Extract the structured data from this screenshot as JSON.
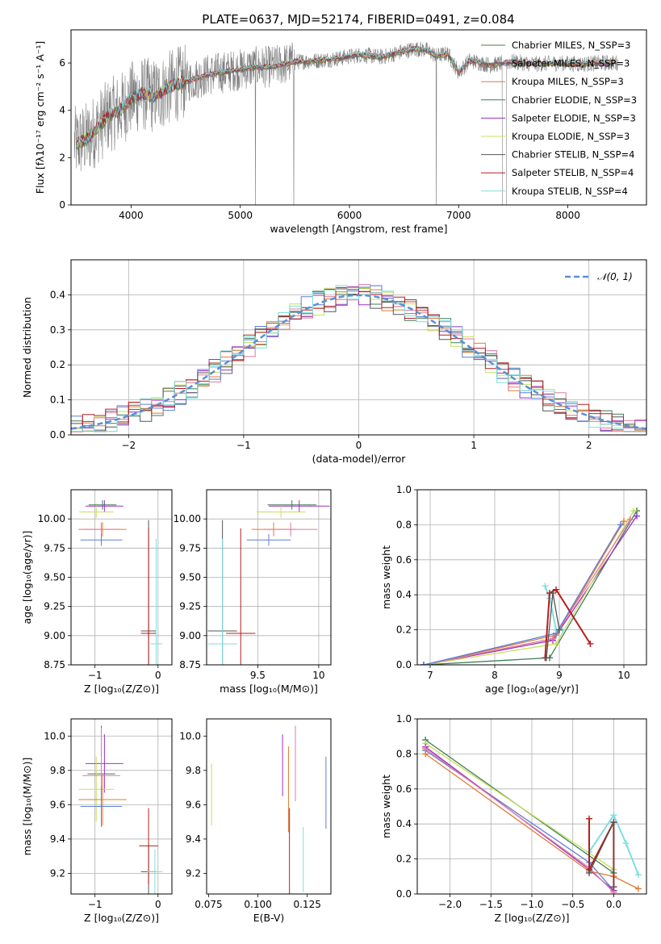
{
  "figure_title": "PLATE=0637, MJD=52174, FIBERID=0491, z=0.084",
  "chart_data": [
    {
      "id": "spectrum",
      "type": "line",
      "xlabel": "wavelength [Angstrom, rest frame]",
      "ylabel": "Flux [fλ10⁻¹⁷ erg cm⁻² s⁻¹ A⁻¹]",
      "xlim": [
        3450,
        8720
      ],
      "ylim": [
        0,
        7.4
      ],
      "xticks": [
        4000,
        5000,
        6000,
        7000,
        8000
      ],
      "yticks": [
        0,
        2,
        4,
        6
      ],
      "grid": false,
      "legend_position": "upper-right",
      "series": [
        {
          "name": "Chabrier MILES, N_SSP=3",
          "color": "#4c7a4c"
        },
        {
          "name": "Salpeter MILES, N_SSP=3",
          "color": "#7a5c8a"
        },
        {
          "name": "Kroupa MILES, N_SSP=3",
          "color": "#e07b39"
        },
        {
          "name": "Chabrier ELODIE, N_SSP=3",
          "color": "#3e7d58"
        },
        {
          "name": "Salpeter ELODIE, N_SSP=3",
          "color": "#9b30c4"
        },
        {
          "name": "Kroupa ELODIE, N_SSP=3",
          "color": "#c8e05a"
        },
        {
          "name": "Chabrier STELIB, N_SSP=4",
          "color": "#555555"
        },
        {
          "name": "Salpeter STELIB, N_SSP=4",
          "color": "#b51e1e"
        },
        {
          "name": "Kroupa STELIB, N_SSP=4",
          "color": "#7fdede"
        }
      ],
      "data_series": {
        "name": "data",
        "color": "#7f7f7f"
      },
      "model_continuum": {
        "x": [
          3500,
          3600,
          3700,
          3800,
          3900,
          4000,
          4100,
          4200,
          4300,
          4400,
          4500,
          4700,
          4900,
          5100,
          5300,
          5500,
          5700,
          5900,
          6100,
          6300,
          6500,
          6600,
          6700,
          6800,
          6900,
          7000,
          7100,
          7200,
          7300,
          7400,
          7500,
          7700,
          7900,
          8100,
          8300,
          8450
        ],
        "y": [
          2.6,
          2.8,
          3.3,
          3.8,
          4.0,
          4.5,
          4.7,
          4.6,
          4.8,
          5.1,
          5.2,
          5.5,
          5.65,
          5.8,
          5.85,
          6.05,
          6.1,
          6.2,
          6.35,
          6.25,
          6.5,
          6.6,
          6.55,
          6.3,
          6.4,
          5.6,
          6.1,
          6.0,
          5.9,
          6.0,
          6.05,
          5.95,
          6.0,
          5.95,
          6.0,
          6.0
        ]
      }
    },
    {
      "id": "residuals",
      "type": "line",
      "xlabel": "(data-model)/error",
      "ylabel": "Normed distribution",
      "xlim": [
        -2.5,
        2.5
      ],
      "ylim": [
        0,
        0.5
      ],
      "xticks": [
        -2,
        -1,
        0,
        1,
        2
      ],
      "yticks": [
        0.0,
        0.1,
        0.2,
        0.3,
        0.4
      ],
      "grid": true,
      "legend_position": "upper-right",
      "legend_label": "𝒩(0, 1)",
      "reference_curve": {
        "name": "N(0,1)",
        "mean": 0,
        "sigma": 1,
        "color": "#5b8fd6"
      },
      "bin_width": 0.1
    },
    {
      "id": "age_vs_Z",
      "type": "scatter",
      "xlabel": "Z [log₁₀(Z/Z⊙)]",
      "ylabel": "age  [log₁₀(age/yr)]",
      "xlim": [
        -1.38,
        0.22
      ],
      "ylim": [
        8.75,
        10.25
      ],
      "xticks": [
        -1,
        0
      ],
      "yticks": [
        8.75,
        9.0,
        9.25,
        9.5,
        9.75,
        10.0
      ],
      "grid": true,
      "points": [
        {
          "x": -0.88,
          "y": 10.12,
          "xerr": 0.22,
          "yerr": 0.04,
          "color": "#3e7d58"
        },
        {
          "x": -0.85,
          "y": 10.11,
          "xerr": 0.3,
          "yerr": 0.05,
          "color": "#9b30c4"
        },
        {
          "x": -0.98,
          "y": 10.06,
          "xerr": 0.27,
          "yerr": 0.05,
          "color": "#c8e05a"
        },
        {
          "x": -0.88,
          "y": 9.91,
          "xerr": 0.38,
          "yerr": 0.06,
          "color": "#e07b39"
        },
        {
          "x": -0.9,
          "y": 9.91,
          "xerr": 0.3,
          "yerr": 0.06,
          "color": "#e07b9b"
        },
        {
          "x": -0.9,
          "y": 9.82,
          "xerr": 0.33,
          "yerr": 0.05,
          "color": "#5b7fd6"
        },
        {
          "x": -0.15,
          "y": 9.04,
          "xerr": 0.12,
          "yerr": 0.95,
          "color": "#555555"
        },
        {
          "x": -0.15,
          "y": 9.02,
          "xerr": 0.12,
          "yerr": 0.9,
          "color": "#b51e1e"
        },
        {
          "x": -0.03,
          "y": 8.93,
          "xerr": 0.1,
          "yerr": 0.9,
          "color": "#7fdede"
        }
      ]
    },
    {
      "id": "age_vs_mass",
      "type": "scatter",
      "xlabel": "mass [log₁₀(M/M⊙)]",
      "ylabel": "",
      "xlim": [
        9.08,
        10.1
      ],
      "ylim": [
        8.75,
        10.25
      ],
      "xticks": [
        9.5,
        10.0
      ],
      "yticks": [
        8.75,
        9.0,
        9.25,
        9.5,
        9.75,
        10.0
      ],
      "grid": true,
      "points": [
        {
          "x": 9.78,
          "y": 10.12,
          "xerr": 0.2,
          "yerr": 0.04,
          "color": "#3e7d58"
        },
        {
          "x": 9.84,
          "y": 10.11,
          "xerr": 0.25,
          "yerr": 0.05,
          "color": "#9b30c4"
        },
        {
          "x": 9.69,
          "y": 10.06,
          "xerr": 0.2,
          "yerr": 0.05,
          "color": "#c8e05a"
        },
        {
          "x": 9.63,
          "y": 9.91,
          "xerr": 0.18,
          "yerr": 0.06,
          "color": "#e07b39"
        },
        {
          "x": 9.77,
          "y": 9.91,
          "xerr": 0.22,
          "yerr": 0.06,
          "color": "#e07b9b"
        },
        {
          "x": 9.59,
          "y": 9.82,
          "xerr": 0.18,
          "yerr": 0.05,
          "color": "#5b7fd6"
        },
        {
          "x": 9.21,
          "y": 9.04,
          "xerr": 0.12,
          "yerr": 0.95,
          "color": "#555555"
        },
        {
          "x": 9.36,
          "y": 9.02,
          "xerr": 0.12,
          "yerr": 0.9,
          "color": "#b51e1e"
        },
        {
          "x": 9.21,
          "y": 8.93,
          "xerr": 0.12,
          "yerr": 0.9,
          "color": "#7fdede"
        }
      ]
    },
    {
      "id": "weight_vs_age",
      "type": "line",
      "xlabel": "age  [log₁₀(age/yr)]",
      "ylabel": "mass weight",
      "xlim": [
        6.8,
        10.35
      ],
      "ylim": [
        0,
        1
      ],
      "xticks": [
        7,
        8,
        9,
        10
      ],
      "yticks": [
        0.0,
        0.2,
        0.4,
        0.6,
        0.8,
        1.0
      ],
      "grid": true,
      "series": [
        {
          "color": "#3e7d58",
          "x": [
            6.9,
            8.85,
            10.2
          ],
          "y": [
            0.0,
            0.04,
            0.88
          ]
        },
        {
          "color": "#9b30c4",
          "x": [
            6.9,
            8.9,
            10.2
          ],
          "y": [
            0.0,
            0.14,
            0.85
          ]
        },
        {
          "color": "#c8e05a",
          "x": [
            6.9,
            8.95,
            10.15
          ],
          "y": [
            0.0,
            0.12,
            0.88
          ]
        },
        {
          "color": "#e07b39",
          "x": [
            6.9,
            8.95,
            10.0
          ],
          "y": [
            0.0,
            0.17,
            0.82
          ]
        },
        {
          "color": "#e07b9b",
          "x": [
            6.9,
            8.9,
            10.1
          ],
          "y": [
            0.0,
            0.15,
            0.83
          ]
        },
        {
          "color": "#5b7fd6",
          "x": [
            6.9,
            8.95,
            9.95
          ],
          "y": [
            0.0,
            0.18,
            0.8
          ]
        },
        {
          "color": "#7fdede",
          "x": [
            8.78,
            8.85,
            8.95,
            9.05
          ],
          "y": [
            0.45,
            0.38,
            0.2,
            0.2
          ]
        },
        {
          "color": "#b51e1e",
          "x": [
            8.78,
            8.85,
            8.95,
            9.48
          ],
          "y": [
            0.04,
            0.41,
            0.43,
            0.12
          ]
        },
        {
          "color": "#555555",
          "x": [
            8.8,
            8.9,
            9.0
          ],
          "y": [
            0.04,
            0.41,
            0.2
          ]
        }
      ]
    },
    {
      "id": "mass_vs_Z",
      "type": "scatter",
      "xlabel": "Z [log₁₀(Z/Z⊙)]",
      "ylabel": "mass [log₁₀(M/M⊙)]",
      "xlim": [
        -1.38,
        0.22
      ],
      "ylim": [
        9.08,
        10.1
      ],
      "xticks": [
        -1,
        0
      ],
      "yticks": [
        9.2,
        9.4,
        9.6,
        9.8,
        10.0
      ],
      "grid": true,
      "points": [
        {
          "x": -0.9,
          "y": 9.78,
          "xerr": 0.22,
          "yerr": 0.28,
          "color": "#3e7d58"
        },
        {
          "x": -0.85,
          "y": 9.84,
          "xerr": 0.3,
          "yerr": 0.17,
          "color": "#9b30c4"
        },
        {
          "x": -0.98,
          "y": 9.69,
          "xerr": 0.28,
          "yerr": 0.19,
          "color": "#c8e05a"
        },
        {
          "x": -0.88,
          "y": 9.63,
          "xerr": 0.38,
          "yerr": 0.15,
          "color": "#e07b39"
        },
        {
          "x": -0.9,
          "y": 9.77,
          "xerr": 0.3,
          "yerr": 0.28,
          "color": "#e07b9b"
        },
        {
          "x": -0.9,
          "y": 9.59,
          "xerr": 0.33,
          "yerr": 0.12,
          "color": "#5b7fd6"
        },
        {
          "x": -0.15,
          "y": 9.21,
          "xerr": 0.12,
          "yerr": 0.15,
          "color": "#555555"
        },
        {
          "x": -0.15,
          "y": 9.36,
          "xerr": 0.15,
          "yerr": 0.22,
          "color": "#b51e1e"
        },
        {
          "x": -0.05,
          "y": 9.21,
          "xerr": 0.12,
          "yerr": 0.13,
          "color": "#7fdede"
        }
      ]
    },
    {
      "id": "mass_vs_ebv",
      "type": "scatter",
      "xlabel": "E(B-V)",
      "ylabel": "",
      "xlim": [
        0.074,
        0.137
      ],
      "ylim": [
        9.08,
        10.1
      ],
      "xticks": [
        0.075,
        0.1,
        0.125
      ],
      "xtick_labels": [
        "0.075",
        "0.100",
        "0.125"
      ],
      "yticks": [
        9.2,
        9.4,
        9.6,
        9.8,
        10.0
      ],
      "grid": false,
      "points": [
        {
          "x": 0.0765,
          "y": 9.66,
          "yerr": 0.18,
          "color": "#c8e05a"
        },
        {
          "x": 0.1125,
          "y": 9.83,
          "yerr": 0.18,
          "color": "#9b30c4"
        },
        {
          "x": 0.1155,
          "y": 9.69,
          "yerr": 0.25,
          "color": "#e07b39"
        },
        {
          "x": 0.116,
          "y": 9.33,
          "yerr": 0.25,
          "color": "#b51e1e"
        },
        {
          "x": 0.119,
          "y": 9.84,
          "yerr": 0.22,
          "color": "#e07b9b"
        },
        {
          "x": 0.123,
          "y": 9.28,
          "yerr": 0.19,
          "color": "#7fdede"
        },
        {
          "x": 0.1345,
          "y": 9.67,
          "yerr": 0.21,
          "color": "#5b7fd6"
        }
      ]
    },
    {
      "id": "weight_vs_Z",
      "type": "line",
      "xlabel": "Z [log₁₀(Z/Z⊙)]",
      "ylabel": "mass weight",
      "xlim": [
        -2.4,
        0.4
      ],
      "ylim": [
        0,
        1
      ],
      "xticks": [
        -2.0,
        -1.5,
        -1.0,
        -0.5,
        0.0
      ],
      "xtick_labels": [
        "−2.0",
        "−1.5",
        "−1.0",
        "−0.5",
        "0.0"
      ],
      "yticks": [
        0.0,
        0.2,
        0.4,
        0.6,
        0.8,
        1.0
      ],
      "grid": true,
      "series": [
        {
          "color": "#3e7d58",
          "x": [
            -2.3,
            0.0
          ],
          "y": [
            0.88,
            0.12
          ]
        },
        {
          "color": "#c8e05a",
          "x": [
            -2.3,
            0.0
          ],
          "y": [
            0.86,
            0.14
          ]
        },
        {
          "color": "#5b7fd6",
          "x": [
            -2.3,
            -0.3,
            0.0
          ],
          "y": [
            0.82,
            0.18,
            0.02
          ]
        },
        {
          "color": "#9b30c4",
          "x": [
            -2.3,
            -0.3,
            0.0
          ],
          "y": [
            0.84,
            0.14,
            0.02
          ]
        },
        {
          "color": "#e07b9b",
          "x": [
            -2.3,
            -0.3,
            0.0
          ],
          "y": [
            0.83,
            0.15,
            0.01
          ]
        },
        {
          "color": "#e07b39",
          "x": [
            -2.3,
            -0.3,
            0.0,
            0.3
          ],
          "y": [
            0.8,
            0.13,
            0.1,
            0.03
          ]
        },
        {
          "color": "#7fdede",
          "x": [
            -0.3,
            0.0,
            0.15,
            0.3
          ],
          "y": [
            0.24,
            0.45,
            0.29,
            0.11
          ]
        },
        {
          "color": "#b51e1e",
          "x": [
            -0.3,
            -0.3,
            0.0,
            0.0
          ],
          "y": [
            0.43,
            0.14,
            0.41,
            0.04
          ]
        },
        {
          "color": "#555555",
          "x": [
            -0.3,
            0.0,
            0.0
          ],
          "y": [
            0.12,
            0.41,
            0.04
          ]
        }
      ]
    }
  ]
}
